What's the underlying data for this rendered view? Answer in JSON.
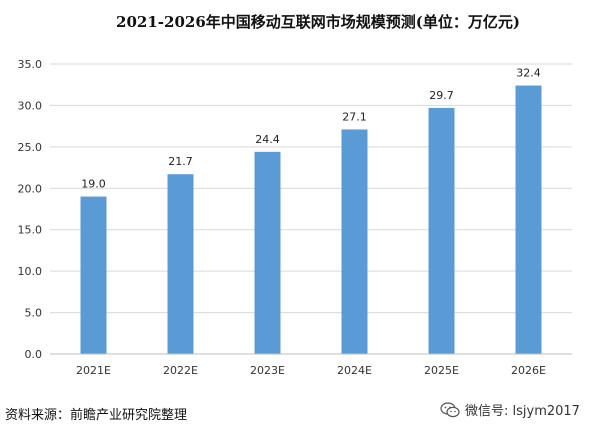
{
  "chart_data": {
    "type": "bar",
    "title": "2021-2026年中国移动互联网市场规模预测(单位：万亿元)",
    "categories": [
      "2021E",
      "2022E",
      "2023E",
      "2024E",
      "2025E",
      "2026E"
    ],
    "values": [
      19.0,
      21.7,
      24.4,
      27.1,
      29.7,
      32.4
    ],
    "value_labels": [
      "19.0",
      "21.7",
      "24.4",
      "27.1",
      "29.7",
      "32.4"
    ],
    "yticks": [
      "0.0",
      "5.0",
      "10.0",
      "15.0",
      "20.0",
      "25.0",
      "30.0",
      "35.0"
    ],
    "ylim": [
      0,
      35
    ],
    "grid": true,
    "bar_color": "#5b9bd5"
  },
  "footer": {
    "source": "资料来源：前瞻产业研究院整理",
    "wechat": "微信号: lsjym2017"
  }
}
